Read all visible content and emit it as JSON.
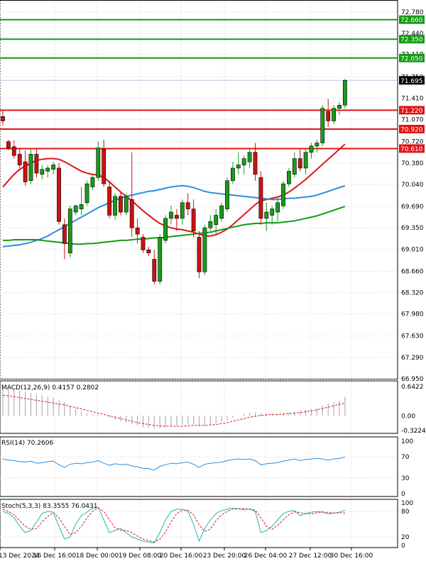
{
  "chart_data": {
    "type": "candlestick",
    "instrument_note": "",
    "price_axis": {
      "ticks": [
        "72.780",
        "72.440",
        "72.110",
        "71.750",
        "71.410",
        "71.070",
        "70.720",
        "70.380",
        "70.040",
        "69.690",
        "69.350",
        "69.010",
        "68.660",
        "68.320",
        "67.980",
        "67.630",
        "67.290",
        "66.950"
      ],
      "range": [
        66.95,
        72.95
      ]
    },
    "price_levels": [
      {
        "label": "72.660",
        "value": 72.66,
        "color": "#159a15"
      },
      {
        "label": "72.350",
        "value": 72.35,
        "color": "#159a15"
      },
      {
        "label": "72.050",
        "value": 72.05,
        "color": "#159a15"
      },
      {
        "label": "71.220",
        "value": 71.22,
        "color": "#e01515"
      },
      {
        "label": "70.920",
        "value": 70.92,
        "color": "#e01515"
      },
      {
        "label": "70.610",
        "value": 70.61,
        "color": "#e01515"
      }
    ],
    "current_price": {
      "label": "71.695",
      "value": 71.695
    },
    "time_labels": [
      "13 Dec 2024",
      "16 Dec 16:00",
      "18 Dec 00:00",
      "19 Dec 08:00",
      "20 Dec 16:00",
      "23 Dec 20:00",
      "26 Dec 04:00",
      "27 Dec 12:00",
      "30 Dec 16:00"
    ],
    "candles": [
      [
        71.12,
        71.22,
        70.98,
        71.05
      ],
      [
        70.72,
        70.75,
        70.58,
        70.62
      ],
      [
        70.64,
        70.74,
        70.45,
        70.5
      ],
      [
        70.52,
        70.62,
        70.3,
        70.35
      ],
      [
        70.4,
        70.58,
        70.02,
        70.08
      ],
      [
        70.1,
        70.62,
        70.05,
        70.52
      ],
      [
        70.52,
        70.6,
        70.15,
        70.22
      ],
      [
        70.2,
        70.35,
        70.12,
        70.28
      ],
      [
        70.25,
        70.35,
        70.15,
        70.3
      ],
      [
        70.28,
        70.4,
        70.2,
        70.35
      ],
      [
        70.3,
        70.38,
        69.4,
        69.45
      ],
      [
        69.4,
        69.5,
        68.85,
        69.1
      ],
      [
        68.95,
        69.7,
        68.88,
        69.65
      ],
      [
        69.6,
        69.72,
        69.55,
        69.7
      ],
      [
        69.65,
        70.0,
        69.55,
        69.72
      ],
      [
        69.75,
        70.1,
        69.7,
        70.05
      ],
      [
        70.0,
        70.2,
        69.95,
        70.15
      ],
      [
        70.15,
        70.72,
        70.1,
        70.62
      ],
      [
        70.6,
        70.75,
        70.0,
        70.05
      ],
      [
        70.0,
        70.1,
        69.5,
        69.55
      ],
      [
        69.55,
        69.9,
        69.48,
        69.85
      ],
      [
        69.85,
        69.92,
        69.55,
        69.6
      ],
      [
        69.6,
        69.9,
        69.55,
        69.85
      ],
      [
        69.8,
        70.55,
        69.2,
        69.35
      ],
      [
        69.35,
        69.5,
        69.1,
        69.25
      ],
      [
        69.2,
        69.25,
        68.95,
        69.0
      ],
      [
        69.0,
        69.05,
        68.9,
        68.95
      ],
      [
        68.85,
        69.0,
        68.45,
        68.5
      ],
      [
        68.5,
        69.25,
        68.45,
        69.2
      ],
      [
        69.15,
        69.55,
        69.1,
        69.5
      ],
      [
        69.5,
        69.7,
        69.4,
        69.6
      ],
      [
        69.55,
        69.65,
        69.3,
        69.5
      ],
      [
        69.5,
        69.8,
        69.4,
        69.75
      ],
      [
        69.75,
        69.9,
        69.55,
        69.65
      ],
      [
        69.65,
        69.8,
        69.2,
        69.3
      ],
      [
        69.2,
        69.3,
        68.55,
        68.65
      ],
      [
        68.65,
        69.4,
        68.6,
        69.35
      ],
      [
        69.35,
        69.55,
        69.3,
        69.45
      ],
      [
        69.4,
        69.65,
        69.25,
        69.55
      ],
      [
        69.5,
        69.75,
        69.45,
        69.7
      ],
      [
        69.65,
        70.15,
        69.6,
        70.1
      ],
      [
        70.1,
        70.4,
        70.05,
        70.3
      ],
      [
        70.3,
        70.55,
        70.2,
        70.35
      ],
      [
        70.35,
        70.5,
        70.2,
        70.45
      ],
      [
        70.4,
        70.6,
        70.3,
        70.55
      ],
      [
        70.55,
        70.7,
        70.1,
        70.2
      ],
      [
        70.15,
        70.25,
        69.4,
        69.5
      ],
      [
        69.5,
        69.75,
        69.3,
        69.6
      ],
      [
        69.55,
        69.7,
        69.4,
        69.65
      ],
      [
        69.6,
        69.85,
        69.45,
        69.75
      ],
      [
        69.7,
        70.1,
        69.65,
        70.05
      ],
      [
        70.05,
        70.3,
        70.0,
        70.25
      ],
      [
        70.2,
        70.55,
        70.15,
        70.45
      ],
      [
        70.45,
        70.6,
        70.25,
        70.3
      ],
      [
        70.3,
        70.6,
        70.2,
        70.55
      ],
      [
        70.55,
        70.7,
        70.45,
        70.65
      ],
      [
        70.65,
        70.75,
        70.55,
        70.7
      ],
      [
        70.7,
        71.3,
        70.65,
        71.25
      ],
      [
        71.2,
        71.4,
        70.95,
        71.05
      ],
      [
        71.05,
        71.3,
        71.0,
        71.25
      ],
      [
        71.25,
        71.35,
        71.15,
        71.3
      ],
      [
        71.3,
        71.72,
        71.25,
        71.695
      ]
    ],
    "series": [
      {
        "name": "MA fast",
        "color": "#e01515",
        "values": [
          70.0,
          70.1,
          70.2,
          70.28,
          70.33,
          70.38,
          70.42,
          70.44,
          70.45,
          70.45,
          70.44,
          70.4,
          70.35,
          70.3,
          70.25,
          70.22,
          70.2,
          70.19,
          70.15,
          70.08,
          70.0,
          69.92,
          69.85,
          69.78,
          69.7,
          69.62,
          69.55,
          69.48,
          69.42,
          69.38,
          69.35,
          69.33,
          69.32,
          69.3,
          69.28,
          69.25,
          69.22,
          69.22,
          69.24,
          69.28,
          69.33,
          69.4,
          69.48,
          69.56,
          69.64,
          69.72,
          69.78,
          69.8,
          69.82,
          69.84,
          69.87,
          69.92,
          69.98,
          70.05,
          70.12,
          70.2,
          70.28,
          70.36,
          70.44,
          70.52,
          70.6,
          70.68
        ]
      },
      {
        "name": "MA mid",
        "color": "#2a8ee0",
        "values": [
          69.05,
          69.06,
          69.07,
          69.08,
          69.1,
          69.12,
          69.15,
          69.18,
          69.22,
          69.27,
          69.32,
          69.37,
          69.42,
          69.47,
          69.52,
          69.57,
          69.62,
          69.67,
          69.71,
          69.75,
          69.79,
          69.82,
          69.85,
          69.87,
          69.89,
          69.91,
          69.93,
          69.94,
          69.96,
          69.98,
          70.0,
          70.01,
          70.02,
          70.01,
          69.99,
          69.96,
          69.93,
          69.91,
          69.9,
          69.89,
          69.88,
          69.87,
          69.86,
          69.85,
          69.84,
          69.83,
          69.82,
          69.81,
          69.8,
          69.8,
          69.81,
          69.82,
          69.82,
          69.83,
          69.84,
          69.85,
          69.87,
          69.9,
          69.93,
          69.96,
          69.99,
          70.02
        ]
      },
      {
        "name": "MA slow",
        "color": "#159a15",
        "values": [
          69.15,
          69.15,
          69.16,
          69.16,
          69.16,
          69.16,
          69.16,
          69.15,
          69.14,
          69.13,
          69.12,
          69.11,
          69.1,
          69.09,
          69.09,
          69.1,
          69.1,
          69.11,
          69.12,
          69.13,
          69.14,
          69.15,
          69.15,
          69.16,
          69.17,
          69.17,
          69.18,
          69.19,
          69.19,
          69.2,
          69.21,
          69.22,
          69.23,
          69.24,
          69.25,
          69.26,
          69.27,
          69.28,
          69.3,
          69.32,
          69.34,
          69.36,
          69.38,
          69.4,
          69.41,
          69.42,
          69.42,
          69.43,
          69.43,
          69.43,
          69.44,
          69.45,
          69.46,
          69.48,
          69.5,
          69.52,
          69.54,
          69.57,
          69.6,
          69.63,
          69.66,
          69.69
        ]
      }
    ],
    "macd": {
      "label": "MACD(12,26,9) 0.4157 0.2802",
      "ticks": [
        "0.6422",
        "0.00",
        "-0.3224"
      ],
      "range": [
        -0.3224,
        0.6422
      ],
      "histogram": [
        0.62,
        0.6,
        0.58,
        0.55,
        0.52,
        0.5,
        0.48,
        0.45,
        0.42,
        0.4,
        0.36,
        0.3,
        0.22,
        0.15,
        0.1,
        0.06,
        0.03,
        0.02,
        0.0,
        -0.04,
        -0.08,
        -0.12,
        -0.15,
        -0.18,
        -0.22,
        -0.25,
        -0.27,
        -0.28,
        -0.27,
        -0.25,
        -0.24,
        -0.22,
        -0.2,
        -0.19,
        -0.19,
        -0.21,
        -0.21,
        -0.19,
        -0.16,
        -0.13,
        -0.09,
        -0.04,
        0.0,
        0.04,
        0.07,
        0.08,
        0.06,
        0.05,
        0.04,
        0.04,
        0.05,
        0.07,
        0.09,
        0.11,
        0.13,
        0.15,
        0.17,
        0.22,
        0.27,
        0.3,
        0.33,
        0.42
      ],
      "signal": [
        0.45,
        0.44,
        0.42,
        0.4,
        0.38,
        0.36,
        0.34,
        0.32,
        0.3,
        0.28,
        0.26,
        0.24,
        0.21,
        0.18,
        0.15,
        0.12,
        0.09,
        0.06,
        0.03,
        0.0,
        -0.03,
        -0.06,
        -0.09,
        -0.12,
        -0.15,
        -0.17,
        -0.19,
        -0.21,
        -0.22,
        -0.23,
        -0.23,
        -0.23,
        -0.23,
        -0.22,
        -0.21,
        -0.21,
        -0.21,
        -0.2,
        -0.19,
        -0.17,
        -0.15,
        -0.12,
        -0.09,
        -0.06,
        -0.03,
        -0.01,
        0.01,
        0.02,
        0.03,
        0.03,
        0.04,
        0.05,
        0.06,
        0.07,
        0.09,
        0.11,
        0.13,
        0.16,
        0.19,
        0.22,
        0.25,
        0.28
      ]
    },
    "rsi": {
      "label": "RSI(14) 70.2606",
      "ticks": [
        "100",
        "70",
        "30",
        "0"
      ],
      "range": [
        0,
        100
      ],
      "values": [
        66,
        64,
        63,
        61,
        60,
        62,
        58,
        59,
        61,
        62,
        55,
        50,
        56,
        58,
        57,
        59,
        60,
        63,
        58,
        54,
        57,
        55,
        56,
        53,
        51,
        48,
        48,
        45,
        52,
        55,
        58,
        57,
        59,
        60,
        56,
        50,
        56,
        58,
        59,
        60,
        63,
        65,
        66,
        65,
        66,
        63,
        55,
        57,
        58,
        59,
        62,
        64,
        66,
        63,
        65,
        66,
        67,
        66,
        64,
        66,
        67,
        70
      ]
    },
    "stoch": {
      "label": "Stoch(5,3,3) 83.3555 76.0431",
      "ticks": [
        "100",
        "80",
        "20",
        "0"
      ],
      "range": [
        0,
        100
      ],
      "k": [
        80,
        75,
        65,
        45,
        30,
        35,
        55,
        75,
        80,
        78,
        45,
        15,
        20,
        50,
        70,
        78,
        88,
        90,
        60,
        30,
        35,
        40,
        30,
        20,
        15,
        10,
        8,
        6,
        30,
        60,
        80,
        85,
        85,
        80,
        50,
        10,
        40,
        60,
        75,
        82,
        85,
        88,
        86,
        84,
        86,
        80,
        30,
        35,
        45,
        60,
        75,
        80,
        82,
        70,
        75,
        78,
        80,
        78,
        74,
        76,
        78,
        83
      ],
      "d": [
        85,
        80,
        72,
        58,
        45,
        38,
        40,
        55,
        68,
        77,
        65,
        45,
        25,
        30,
        45,
        65,
        80,
        88,
        80,
        60,
        42,
        36,
        35,
        30,
        22,
        15,
        11,
        8,
        15,
        32,
        55,
        75,
        83,
        83,
        72,
        48,
        33,
        38,
        58,
        72,
        80,
        85,
        86,
        86,
        85,
        83,
        65,
        45,
        38,
        47,
        60,
        72,
        79,
        77,
        75,
        74,
        77,
        79,
        77,
        76,
        77,
        76
      ]
    }
  }
}
